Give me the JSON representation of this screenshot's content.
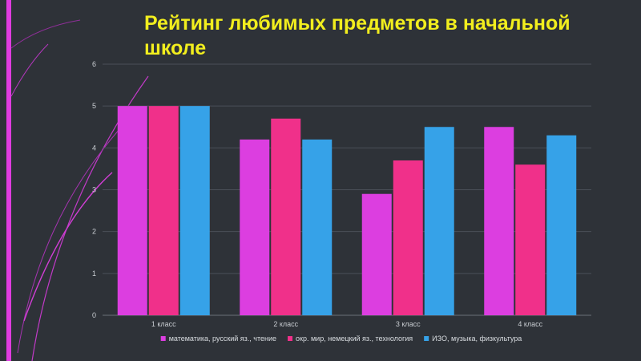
{
  "slide": {
    "title": "Рейтинг любимых предметов в начальной школе"
  },
  "colors": {
    "background": "#2e3238",
    "title": "#f2ee1e",
    "accent": "#e03ce0",
    "grid": "#4a4f57",
    "text": "#c9cdd2"
  },
  "chart_data": {
    "type": "bar",
    "title": "",
    "xlabel": "",
    "ylabel": "",
    "categories": [
      "1 класс",
      "2 класс",
      "3 класс",
      "4 класс"
    ],
    "series": [
      {
        "name": "математика, русский яз., чтение",
        "color": "#dc3ee0",
        "values": [
          5,
          4.2,
          2.9,
          4.5
        ]
      },
      {
        "name": "окр. мир, немецкий яз., технология",
        "color": "#f0308a",
        "values": [
          5,
          4.7,
          3.7,
          3.6
        ]
      },
      {
        "name": "ИЗО, музыка, физкультура",
        "color": "#36a2e8",
        "values": [
          5,
          4.2,
          4.5,
          4.3
        ]
      }
    ],
    "ylim": [
      0,
      6
    ],
    "yticks": [
      0,
      1,
      2,
      3,
      4,
      5,
      6
    ],
    "grid": true,
    "legend": "bottom"
  }
}
